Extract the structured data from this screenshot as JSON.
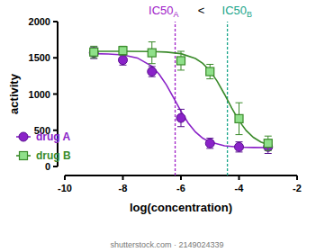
{
  "chart_data": {
    "type": "scatter",
    "x_label": "log(concentration)",
    "y_label": "activity",
    "xlim": [
      -10,
      -2
    ],
    "xticks": [
      -10,
      -8,
      -6,
      -4,
      -2
    ],
    "ylim": [
      0,
      2000
    ],
    "yticks": [
      0,
      500,
      1000,
      1500,
      2000
    ],
    "legend": "lower left",
    "series": [
      {
        "name": "drug A",
        "color": "#8a22c8",
        "marker": "circle",
        "x": [
          -9,
          -8,
          -7,
          -6,
          -5,
          -4,
          -3
        ],
        "values": [
          1570,
          1470,
          1310,
          670,
          320,
          270,
          270
        ],
        "errors": [
          80,
          70,
          70,
          120,
          70,
          70,
          90
        ],
        "fit_x": [
          -9,
          -8.5,
          -8,
          -7.5,
          -7,
          -6.75,
          -6.5,
          -6.25,
          -6,
          -5.75,
          -5.5,
          -5.25,
          -5,
          -4.5,
          -4,
          -3.5,
          -3
        ],
        "fit_values": [
          1558,
          1553,
          1540,
          1498,
          1383,
          1274,
          1126,
          947,
          763,
          600,
          476,
          391,
          337,
          285,
          268,
          263,
          261
        ]
      },
      {
        "name": "drug B",
        "color": "#3a8a2a",
        "marker": "square",
        "x": [
          -9,
          -8,
          -7,
          -6,
          -5,
          -4,
          -3
        ],
        "values": [
          1580,
          1600,
          1570,
          1460,
          1310,
          660,
          320
        ],
        "errors": [
          80,
          60,
          150,
          130,
          100,
          220,
          100
        ],
        "fit_x": [
          -9,
          -8,
          -7,
          -6.5,
          -6,
          -5.5,
          -5.25,
          -5,
          -4.75,
          -4.5,
          -4.25,
          -4,
          -3.75,
          -3.5,
          -3.25,
          -3
        ],
        "fit_values": [
          1590,
          1590,
          1587,
          1579,
          1557,
          1491,
          1424,
          1321,
          1176,
          997,
          805,
          632,
          495,
          400,
          339,
          301
        ]
      }
    ],
    "annotations": [
      {
        "text": "IC50",
        "sub": "A",
        "x": -6.2,
        "color": "#a020c8"
      },
      {
        "text": "<"
      },
      {
        "text": "IC50",
        "sub": "B",
        "x": -4.4,
        "color": "#1aa58a"
      }
    ],
    "watermark": "shutterstock.com · 2149024339"
  }
}
